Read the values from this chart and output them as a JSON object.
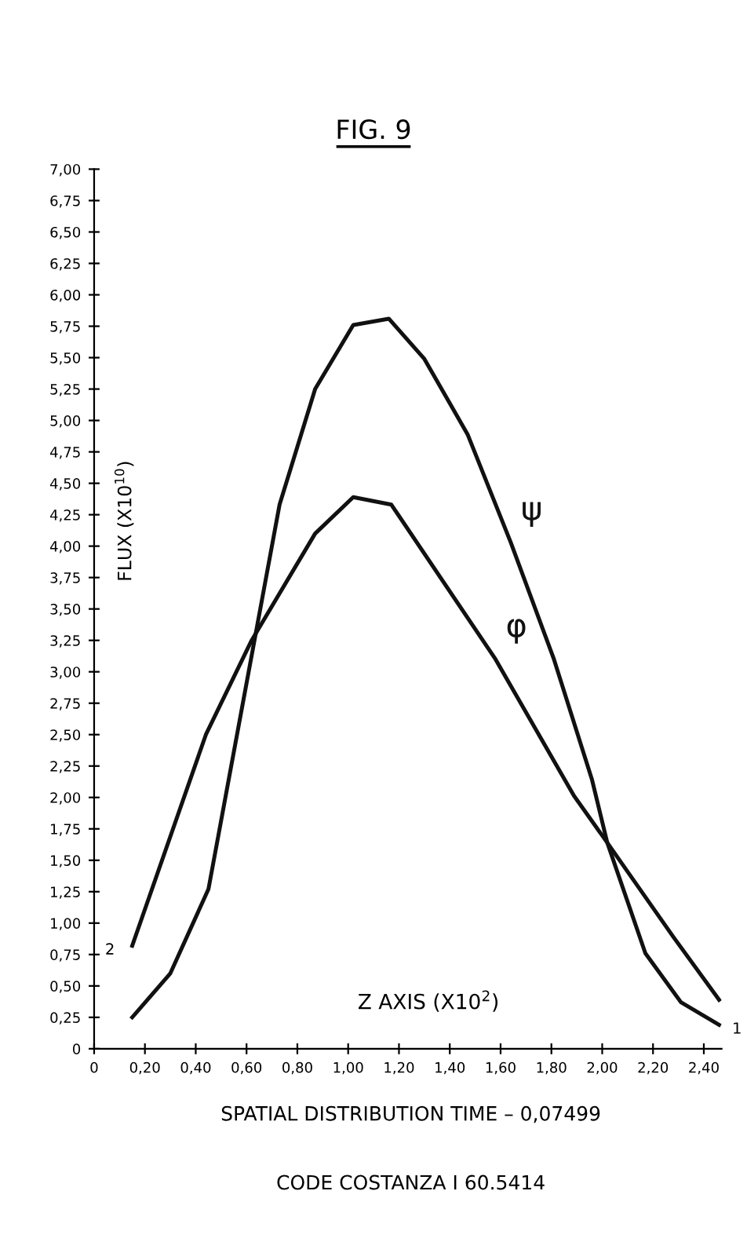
{
  "chart_data": {
    "type": "line",
    "title": "FIG. 9",
    "xlabel": "Z AXIS (X10$^{2}$)",
    "ylabel": "FLUX (X10$^{10}$)",
    "series": [
      {
        "name": "ψ",
        "color": "#111111",
        "x": [
          0.15,
          0.3,
          0.45,
          0.73,
          0.87,
          1.02,
          1.16,
          1.3,
          1.47,
          1.64,
          1.81,
          1.96,
          2.02,
          2.17,
          2.31,
          2.46
        ],
        "values": [
          0.25,
          0.6,
          1.27,
          4.33,
          5.25,
          5.76,
          5.81,
          5.49,
          4.89,
          4.03,
          3.1,
          2.14,
          1.64,
          0.76,
          0.37,
          0.19
        ]
      },
      {
        "name": "φ",
        "color": "#111111",
        "x": [
          0.15,
          0.44,
          0.62,
          0.87,
          1.02,
          1.17,
          1.58,
          1.89,
          2.02,
          2.28,
          2.46
        ],
        "values": [
          0.82,
          2.5,
          3.25,
          4.1,
          4.39,
          4.33,
          3.1,
          2.01,
          1.64,
          0.89,
          0.39
        ]
      }
    ],
    "xlim": [
      0,
      2.47
    ],
    "ylim": [
      0,
      7.0
    ],
    "xticks": [
      0,
      {
        "value": 0.2,
        "label": "0,20"
      },
      {
        "value": 0.4,
        "label": "0,40"
      },
      {
        "value": 0.6,
        "label": "0,60"
      },
      {
        "value": 0.8,
        "label": "0,80"
      },
      {
        "value": 1.0,
        "label": "1,00"
      },
      {
        "value": 1.2,
        "label": "1,20"
      },
      {
        "value": 1.4,
        "label": "1,40"
      },
      {
        "value": 1.6,
        "label": "1,60"
      },
      {
        "value": 1.8,
        "label": "1,80"
      },
      {
        "value": 2.0,
        "label": "2,00"
      },
      {
        "value": 2.2,
        "label": "2,20"
      },
      {
        "value": 2.4,
        "label": "2,40"
      }
    ],
    "yticks": [
      0,
      {
        "value": 0.25,
        "label": "0,25"
      },
      {
        "value": 0.5,
        "label": "0,50"
      },
      {
        "value": 0.75,
        "label": "0,75"
      },
      {
        "value": 1.0,
        "label": "1,00"
      },
      {
        "value": 1.25,
        "label": "1,25"
      },
      {
        "value": 1.5,
        "label": "1,50"
      },
      {
        "value": 1.75,
        "label": "1,75"
      },
      {
        "value": 2.0,
        "label": "2,00"
      },
      {
        "value": 2.25,
        "label": "2,25"
      },
      {
        "value": 2.5,
        "label": "2,50"
      },
      {
        "value": 2.75,
        "label": "2,75"
      },
      {
        "value": 3.0,
        "label": "3,00"
      },
      {
        "value": 3.25,
        "label": "3,25"
      },
      {
        "value": 3.5,
        "label": "3,50"
      },
      {
        "value": 3.75,
        "label": "3,75"
      },
      {
        "value": 4.0,
        "label": "4,00"
      },
      {
        "value": 4.25,
        "label": "4,25"
      },
      {
        "value": 4.5,
        "label": "4,50"
      },
      {
        "value": 4.75,
        "label": "4,75"
      },
      {
        "value": 5.0,
        "label": "5,00"
      },
      {
        "value": 5.25,
        "label": "5,25"
      },
      {
        "value": 5.5,
        "label": "5,50"
      },
      {
        "value": 5.75,
        "label": "5,75"
      },
      {
        "value": 6.0,
        "label": "6,00"
      },
      {
        "value": 6.25,
        "label": "6,25"
      },
      {
        "value": 6.5,
        "label": "6,50"
      },
      {
        "value": 6.75,
        "label": "6,75"
      },
      {
        "value": 7.0,
        "label": "7,00"
      }
    ],
    "annotations": [
      {
        "text": "2",
        "x": 0.15,
        "y": 0.82
      },
      {
        "text": "1",
        "x": 2.46,
        "y": 0.19
      },
      "SPATIAL DISTRIBUTION TIME – 0,07499",
      "CODE COSTANZA I 60.5414"
    ],
    "grid": false,
    "legend": false,
    "marker": "none",
    "line_style": "solid"
  }
}
